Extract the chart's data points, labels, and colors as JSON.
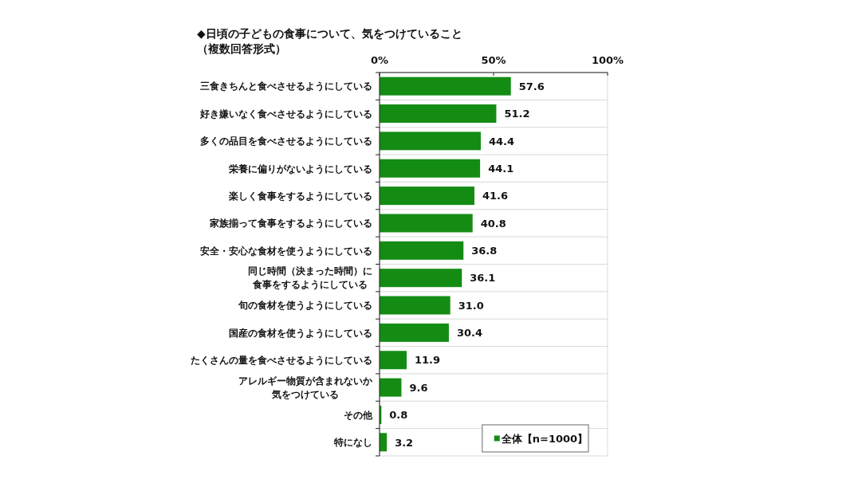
{
  "chart_data": {
    "type": "bar",
    "orientation": "horizontal",
    "title": "◆日頃の子どもの食事について、気をつけていること",
    "subtitle": "（複数回答形式）",
    "categories": [
      "三食きちんと食べさせるようにしている",
      "好き嫌いなく食べさせるようにしている",
      "多くの品目を食べさせるようにしている",
      "栄養に偏りがないようにしている",
      "楽しく食事をするようにしている",
      "家族揃って食事をするようにしている",
      "安全・安心な食材を使うようにしている",
      "同じ時間（決まった時間）に食事をするようにしている",
      "旬の食材を使うようにしている",
      "国産の食材を使うようにしている",
      "たくさんの量を食べさせるようにしている",
      "アレルギー物質が含まれないか気をつけている",
      "その他",
      "特になし"
    ],
    "series": [
      {
        "name": "全体【n=1000】",
        "color": "#148c14",
        "values": [
          57.6,
          51.2,
          44.4,
          44.1,
          41.6,
          40.8,
          36.8,
          36.1,
          31.0,
          30.4,
          11.9,
          9.6,
          0.8,
          3.2
        ],
        "value_labels": [
          "57.6",
          "51.2",
          "44.4",
          "44.1",
          "41.6",
          "40.8",
          "36.8",
          "36.1",
          "31.0",
          "30.4",
          "11.9",
          "9.6",
          "0.8",
          "3.2"
        ]
      }
    ],
    "xlim": [
      0,
      100
    ],
    "xticks": [
      {
        "value": 0,
        "label": "0%"
      },
      {
        "value": 50,
        "label": "50%"
      },
      {
        "value": 100,
        "label": "100%"
      }
    ],
    "grid": "y",
    "legend": "bottom right"
  }
}
